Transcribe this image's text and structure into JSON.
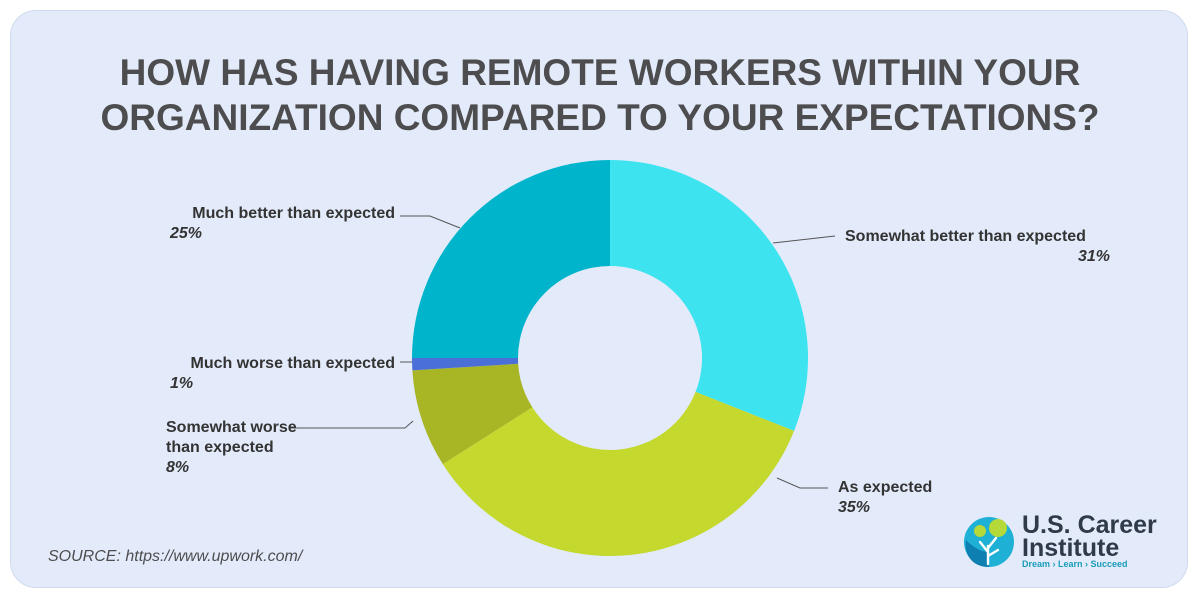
{
  "title_line1": "HOW HAS HAVING REMOTE WORKERS WITHIN YOUR",
  "title_line2": "ORGANIZATION COMPARED TO YOUR EXPECTATIONS?",
  "source": "SOURCE: https://www.upwork.com/",
  "logo": {
    "line1": "U.S. Career",
    "line2": "Institute",
    "tagline": "Dream › Learn › Succeed"
  },
  "chart_data": {
    "type": "pie",
    "donut": true,
    "slices": [
      {
        "label": "Somewhat better than expected",
        "value": 31,
        "display": "31%",
        "color": "#3de3ef"
      },
      {
        "label": "As expected",
        "value": 35,
        "display": "35%",
        "color": "#c4d82e"
      },
      {
        "label": "Somewhat worse than expected",
        "value": 8,
        "display": "8%",
        "color": "#a8b525"
      },
      {
        "label": "Much worse than expected",
        "value": 1,
        "display": "1%",
        "color": "#4a6fd6"
      },
      {
        "label": "Much better than expected",
        "value": 25,
        "display": "25%",
        "color": "#00b4cc"
      }
    ]
  }
}
